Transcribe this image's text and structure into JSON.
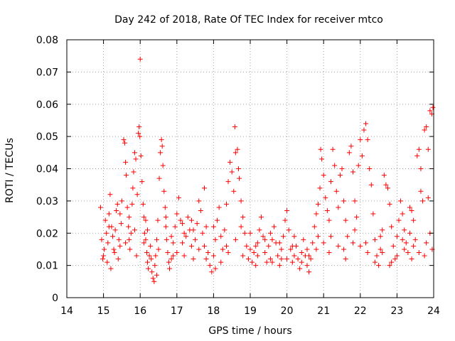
{
  "chart_data": {
    "type": "scatter",
    "title": "Day 242 of 2018, Rate Of TEC Index for receiver mtco",
    "xlabel": "GPS time / hours",
    "ylabel": "ROTI / TECUs",
    "xlim": [
      14,
      24
    ],
    "ylim": [
      0,
      0.08
    ],
    "xticks": [
      14,
      15,
      16,
      17,
      18,
      19,
      20,
      21,
      22,
      23,
      24
    ],
    "yticks": [
      0,
      0.01,
      0.02,
      0.03,
      0.04,
      0.05,
      0.06,
      0.07,
      0.08
    ],
    "xtick_labels": [
      "14",
      "15",
      "16",
      "17",
      "18",
      "19",
      "20",
      "21",
      "22",
      "23",
      "24"
    ],
    "ytick_labels": [
      "0",
      "0.01",
      "0.02",
      "0.03",
      "0.04",
      "0.05",
      "0.06",
      "0.07",
      "0.08"
    ],
    "grid": true,
    "marker": "+",
    "series": [
      {
        "name": "ROTI",
        "color": "#ff0000",
        "points": [
          [
            14.92,
            0.028
          ],
          [
            14.95,
            0.018
          ],
          [
            14.98,
            0.012
          ],
          [
            15.02,
            0.015
          ],
          [
            15.05,
            0.024
          ],
          [
            15.08,
            0.02
          ],
          [
            15.12,
            0.017
          ],
          [
            15.15,
            0.026
          ],
          [
            15.18,
            0.032
          ],
          [
            15.22,
            0.022
          ],
          [
            15.25,
            0.019
          ],
          [
            15.28,
            0.015
          ],
          [
            15.32,
            0.021
          ],
          [
            15.35,
            0.027
          ],
          [
            15.38,
            0.029
          ],
          [
            15.42,
            0.018
          ],
          [
            15.45,
            0.016
          ],
          [
            15.48,
            0.023
          ],
          [
            15.5,
            0.03
          ],
          [
            15.55,
            0.049
          ],
          [
            15.58,
            0.048
          ],
          [
            15.6,
            0.042
          ],
          [
            15.62,
            0.038
          ],
          [
            15.65,
            0.028
          ],
          [
            15.68,
            0.022
          ],
          [
            15.7,
            0.018
          ],
          [
            15.72,
            0.015
          ],
          [
            15.75,
            0.02
          ],
          [
            15.78,
            0.029
          ],
          [
            15.8,
            0.034
          ],
          [
            15.82,
            0.039
          ],
          [
            15.85,
            0.045
          ],
          [
            15.88,
            0.043
          ],
          [
            15.92,
            0.032
          ],
          [
            15.95,
            0.051
          ],
          [
            15.97,
            0.053
          ],
          [
            15.99,
            0.05
          ],
          [
            16.0,
            0.074
          ],
          [
            16.02,
            0.044
          ],
          [
            16.05,
            0.036
          ],
          [
            16.08,
            0.029
          ],
          [
            16.1,
            0.025
          ],
          [
            16.12,
            0.02
          ],
          [
            16.15,
            0.018
          ],
          [
            16.18,
            0.014
          ],
          [
            16.2,
            0.011
          ],
          [
            16.22,
            0.009
          ],
          [
            16.25,
            0.013
          ],
          [
            16.28,
            0.016
          ],
          [
            16.3,
            0.012
          ],
          [
            16.32,
            0.008
          ],
          [
            16.35,
            0.006
          ],
          [
            16.38,
            0.005
          ],
          [
            16.4,
            0.01
          ],
          [
            16.42,
            0.013
          ],
          [
            16.45,
            0.018
          ],
          [
            16.48,
            0.024
          ],
          [
            16.52,
            0.037
          ],
          [
            16.55,
            0.045
          ],
          [
            16.58,
            0.049
          ],
          [
            16.6,
            0.047
          ],
          [
            16.62,
            0.041
          ],
          [
            16.65,
            0.033
          ],
          [
            16.68,
            0.028
          ],
          [
            16.7,
            0.022
          ],
          [
            16.72,
            0.018
          ],
          [
            16.75,
            0.014
          ],
          [
            16.78,
            0.011
          ],
          [
            16.8,
            0.009
          ],
          [
            16.85,
            0.012
          ],
          [
            16.9,
            0.017
          ],
          [
            16.95,
            0.022
          ],
          [
            17.0,
            0.026
          ],
          [
            17.05,
            0.031
          ],
          [
            17.1,
            0.024
          ],
          [
            17.15,
            0.017
          ],
          [
            17.2,
            0.013
          ],
          [
            17.25,
            0.019
          ],
          [
            17.3,
            0.025
          ],
          [
            17.35,
            0.021
          ],
          [
            17.4,
            0.016
          ],
          [
            17.45,
            0.012
          ],
          [
            17.5,
            0.018
          ],
          [
            17.55,
            0.023
          ],
          [
            17.6,
            0.03
          ],
          [
            17.65,
            0.027
          ],
          [
            17.7,
            0.02
          ],
          [
            17.75,
            0.034
          ],
          [
            17.8,
            0.022
          ],
          [
            17.85,
            0.014
          ],
          [
            17.9,
            0.01
          ],
          [
            17.95,
            0.008
          ],
          [
            18.0,
            0.013
          ],
          [
            18.05,
            0.018
          ],
          [
            18.1,
            0.024
          ],
          [
            18.15,
            0.028
          ],
          [
            18.2,
            0.019
          ],
          [
            18.25,
            0.015
          ],
          [
            18.3,
            0.021
          ],
          [
            18.35,
            0.029
          ],
          [
            18.4,
            0.036
          ],
          [
            18.45,
            0.042
          ],
          [
            18.5,
            0.039
          ],
          [
            18.55,
            0.033
          ],
          [
            18.58,
            0.053
          ],
          [
            18.6,
            0.045
          ],
          [
            18.65,
            0.046
          ],
          [
            18.68,
            0.04
          ],
          [
            18.7,
            0.037
          ],
          [
            18.75,
            0.03
          ],
          [
            18.8,
            0.025
          ],
          [
            18.85,
            0.02
          ],
          [
            18.9,
            0.016
          ],
          [
            18.95,
            0.012
          ],
          [
            19.0,
            0.015
          ],
          [
            19.05,
            0.011
          ],
          [
            19.1,
            0.014
          ],
          [
            19.15,
            0.01
          ],
          [
            19.2,
            0.017
          ],
          [
            19.25,
            0.021
          ],
          [
            19.3,
            0.025
          ],
          [
            19.35,
            0.019
          ],
          [
            19.4,
            0.014
          ],
          [
            19.45,
            0.011
          ],
          [
            19.5,
            0.016
          ],
          [
            19.55,
            0.012
          ],
          [
            19.6,
            0.018
          ],
          [
            19.65,
            0.022
          ],
          [
            19.7,
            0.017
          ],
          [
            19.75,
            0.013
          ],
          [
            19.8,
            0.01
          ],
          [
            19.85,
            0.015
          ],
          [
            19.9,
            0.019
          ],
          [
            19.95,
            0.024
          ],
          [
            20.0,
            0.027
          ],
          [
            20.05,
            0.021
          ],
          [
            20.1,
            0.015
          ],
          [
            20.15,
            0.011
          ],
          [
            20.2,
            0.013
          ],
          [
            20.25,
            0.016
          ],
          [
            20.3,
            0.012
          ],
          [
            20.35,
            0.009
          ],
          [
            20.4,
            0.014
          ],
          [
            20.45,
            0.018
          ],
          [
            20.5,
            0.013
          ],
          [
            20.55,
            0.01
          ],
          [
            20.6,
            0.008
          ],
          [
            20.65,
            0.012
          ],
          [
            20.7,
            0.017
          ],
          [
            20.75,
            0.022
          ],
          [
            20.8,
            0.026
          ],
          [
            20.85,
            0.029
          ],
          [
            20.9,
            0.034
          ],
          [
            20.92,
            0.046
          ],
          [
            20.95,
            0.043
          ],
          [
            21.0,
            0.038
          ],
          [
            21.05,
            0.031
          ],
          [
            21.1,
            0.027
          ],
          [
            21.15,
            0.024
          ],
          [
            21.2,
            0.036
          ],
          [
            21.25,
            0.046
          ],
          [
            21.3,
            0.041
          ],
          [
            21.35,
            0.033
          ],
          [
            21.4,
            0.028
          ],
          [
            21.45,
            0.038
          ],
          [
            21.5,
            0.04
          ],
          [
            21.55,
            0.03
          ],
          [
            21.6,
            0.024
          ],
          [
            21.65,
            0.019
          ],
          [
            21.7,
            0.045
          ],
          [
            21.75,
            0.047
          ],
          [
            21.8,
            0.039
          ],
          [
            21.85,
            0.03
          ],
          [
            21.9,
            0.025
          ],
          [
            21.95,
            0.041
          ],
          [
            22.0,
            0.049
          ],
          [
            22.05,
            0.044
          ],
          [
            22.1,
            0.052
          ],
          [
            22.15,
            0.054
          ],
          [
            22.2,
            0.049
          ],
          [
            22.25,
            0.04
          ],
          [
            22.3,
            0.035
          ],
          [
            22.35,
            0.026
          ],
          [
            22.4,
            0.018
          ],
          [
            22.45,
            0.013
          ],
          [
            22.5,
            0.01
          ],
          [
            22.55,
            0.015
          ],
          [
            22.6,
            0.021
          ],
          [
            22.65,
            0.038
          ],
          [
            22.7,
            0.035
          ],
          [
            22.75,
            0.034
          ],
          [
            22.8,
            0.029
          ],
          [
            22.85,
            0.022
          ],
          [
            22.9,
            0.016
          ],
          [
            22.95,
            0.012
          ],
          [
            23.0,
            0.019
          ],
          [
            23.05,
            0.024
          ],
          [
            23.1,
            0.03
          ],
          [
            23.15,
            0.026
          ],
          [
            23.2,
            0.021
          ],
          [
            23.25,
            0.017
          ],
          [
            23.3,
            0.014
          ],
          [
            23.35,
            0.02
          ],
          [
            23.4,
            0.027
          ],
          [
            23.45,
            0.024
          ],
          [
            23.5,
            0.018
          ],
          [
            23.55,
            0.044
          ],
          [
            23.6,
            0.046
          ],
          [
            23.65,
            0.04
          ],
          [
            23.7,
            0.03
          ],
          [
            23.75,
            0.052
          ],
          [
            23.8,
            0.053
          ],
          [
            23.85,
            0.046
          ],
          [
            23.9,
            0.058
          ],
          [
            23.95,
            0.057
          ],
          [
            23.98,
            0.059
          ],
          [
            15.0,
            0.013
          ],
          [
            15.1,
            0.011
          ],
          [
            15.2,
            0.009
          ],
          [
            15.3,
            0.014
          ],
          [
            15.4,
            0.012
          ],
          [
            15.6,
            0.017
          ],
          [
            15.7,
            0.025
          ],
          [
            15.9,
            0.013
          ],
          [
            16.1,
            0.017
          ],
          [
            16.2,
            0.021
          ],
          [
            16.5,
            0.015
          ],
          [
            16.7,
            0.025
          ],
          [
            16.9,
            0.013
          ],
          [
            17.0,
            0.014
          ],
          [
            17.2,
            0.02
          ],
          [
            17.4,
            0.024
          ],
          [
            17.6,
            0.015
          ],
          [
            17.8,
            0.012
          ],
          [
            18.0,
            0.022
          ],
          [
            18.2,
            0.011
          ],
          [
            18.4,
            0.014
          ],
          [
            18.6,
            0.018
          ],
          [
            18.8,
            0.013
          ],
          [
            19.0,
            0.02
          ],
          [
            19.2,
            0.013
          ],
          [
            19.4,
            0.018
          ],
          [
            19.6,
            0.011
          ],
          [
            19.8,
            0.017
          ],
          [
            20.0,
            0.012
          ],
          [
            20.2,
            0.019
          ],
          [
            20.4,
            0.011
          ],
          [
            20.6,
            0.013
          ],
          [
            20.8,
            0.015
          ],
          [
            21.0,
            0.017
          ],
          [
            21.2,
            0.019
          ],
          [
            21.4,
            0.016
          ],
          [
            21.6,
            0.012
          ],
          [
            21.8,
            0.017
          ],
          [
            22.0,
            0.016
          ],
          [
            22.2,
            0.014
          ],
          [
            22.4,
            0.011
          ],
          [
            22.6,
            0.014
          ],
          [
            22.8,
            0.01
          ],
          [
            23.0,
            0.013
          ],
          [
            23.2,
            0.015
          ],
          [
            23.4,
            0.012
          ],
          [
            23.6,
            0.014
          ],
          [
            23.8,
            0.017
          ],
          [
            23.9,
            0.02
          ],
          [
            23.96,
            0.015
          ],
          [
            15.15,
            0.022
          ],
          [
            15.45,
            0.026
          ],
          [
            15.85,
            0.021
          ],
          [
            16.15,
            0.024
          ],
          [
            16.45,
            0.007
          ],
          [
            16.85,
            0.019
          ],
          [
            17.15,
            0.023
          ],
          [
            17.45,
            0.021
          ],
          [
            17.75,
            0.016
          ],
          [
            18.05,
            0.009
          ],
          [
            18.35,
            0.016
          ],
          [
            18.75,
            0.022
          ],
          [
            19.15,
            0.016
          ],
          [
            19.55,
            0.02
          ],
          [
            19.85,
            0.012
          ],
          [
            20.15,
            0.016
          ],
          [
            20.55,
            0.015
          ],
          [
            20.85,
            0.019
          ],
          [
            21.15,
            0.014
          ],
          [
            21.55,
            0.015
          ],
          [
            21.85,
            0.021
          ],
          [
            22.15,
            0.017
          ],
          [
            22.55,
            0.019
          ],
          [
            22.85,
            0.011
          ],
          [
            23.15,
            0.018
          ],
          [
            23.45,
            0.016
          ],
          [
            23.75,
            0.013
          ],
          [
            23.85,
            0.031
          ],
          [
            23.65,
            0.033
          ],
          [
            23.35,
            0.028
          ]
        ]
      }
    ]
  }
}
